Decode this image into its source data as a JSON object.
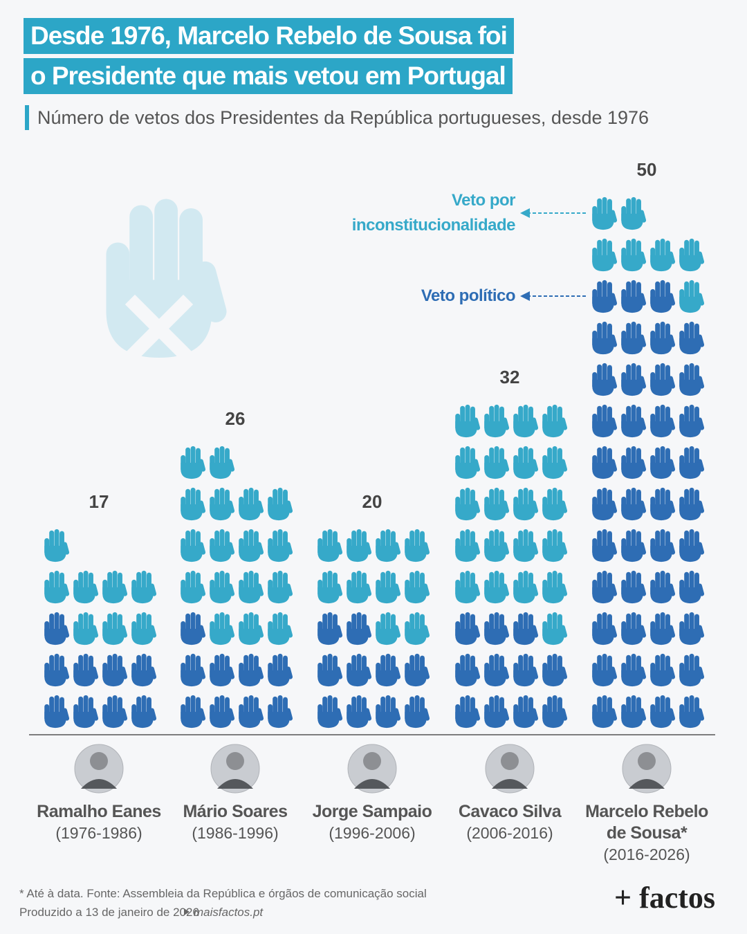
{
  "title_lines": [
    "Desde 1976, Marcelo Rebelo de Sousa foi",
    "o Presidente que mais vetou em Portugal"
  ],
  "subtitle": "Número de vetos dos Presidentes da República portugueses, desde 1976",
  "chart_data": {
    "type": "pictogram",
    "categories": [
      "Ramalho Eanes",
      "Mário Soares",
      "Jorge Sampaio",
      "Cavaco Silva",
      "Marcelo Rebelo de Sousa*"
    ],
    "periods": [
      "(1976-1986)",
      "(1986-1996)",
      "(1996-2006)",
      "(2006-2016)",
      "(2016-2026)"
    ],
    "totals": [
      17,
      26,
      20,
      32,
      50
    ],
    "series": [
      {
        "name": "Veto político",
        "color": "#2e6db4",
        "values": [
          9,
          9,
          10,
          11,
          43
        ]
      },
      {
        "name": "Veto por inconstitucionalidade",
        "color": "#36a9c9",
        "values": [
          8,
          17,
          10,
          21,
          7
        ]
      }
    ]
  },
  "footnote": "* Até à data. Fonte: Assembleia da República e órgãos de comunicação social",
  "produced": "Produzido a 13 de janeiro de 2026",
  "site": "maisfactos.pt",
  "brand": "+ factos"
}
